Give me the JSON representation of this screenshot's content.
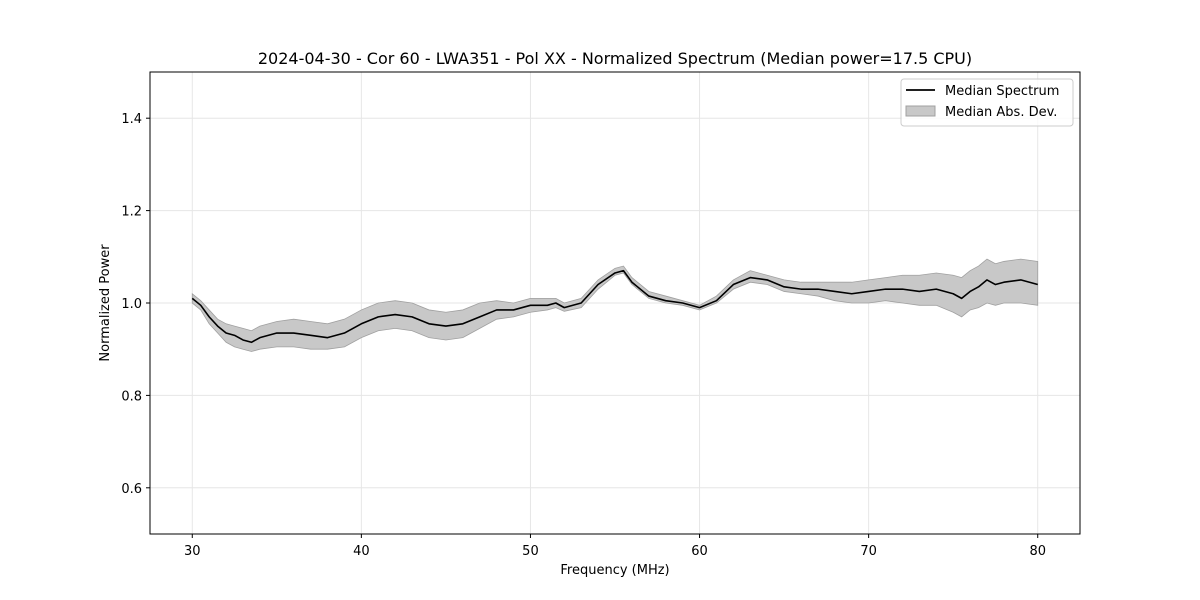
{
  "chart_data": {
    "type": "line",
    "title": "2024-04-30 - Cor 60 - LWA351 - Pol XX - Normalized Spectrum (Median power=17.5 CPU)",
    "xlabel": "Frequency (MHz)",
    "ylabel": "Normalized Power",
    "xlim": [
      27.5,
      82.5
    ],
    "ylim": [
      0.5,
      1.5
    ],
    "xticks": [
      30,
      40,
      50,
      60,
      70,
      80
    ],
    "yticks": [
      0.6,
      0.8,
      1.0,
      1.2,
      1.4
    ],
    "xtick_labels": [
      "30",
      "40",
      "50",
      "60",
      "70",
      "80"
    ],
    "ytick_labels": [
      "0.6",
      "0.8",
      "1.0",
      "1.2",
      "1.4"
    ],
    "grid": true,
    "legend_position": "top-right",
    "colors": {
      "line": "#000000",
      "band_fill": "#c8c8c8",
      "band_edge": "#a0a0a0",
      "grid": "#e6e6e6"
    },
    "series": [
      {
        "name": "Median Spectrum",
        "kind": "line",
        "x": [
          30,
          30.5,
          31,
          31.5,
          32,
          32.5,
          33,
          33.5,
          34,
          35,
          36,
          37,
          38,
          39,
          40,
          41,
          42,
          43,
          44,
          45,
          46,
          47,
          48,
          49,
          50,
          51,
          51.5,
          52,
          53,
          54,
          55,
          55.5,
          56,
          57,
          58,
          59,
          60,
          61,
          62,
          63,
          64,
          65,
          66,
          67,
          68,
          69,
          70,
          71,
          72,
          73,
          74,
          75,
          75.5,
          76,
          76.5,
          77,
          77.5,
          78,
          79,
          80
        ],
        "y": [
          1.01,
          0.995,
          0.97,
          0.95,
          0.935,
          0.93,
          0.92,
          0.915,
          0.925,
          0.935,
          0.935,
          0.93,
          0.925,
          0.935,
          0.955,
          0.97,
          0.975,
          0.97,
          0.955,
          0.95,
          0.955,
          0.97,
          0.985,
          0.985,
          0.995,
          0.995,
          1.0,
          0.99,
          1.0,
          1.04,
          1.065,
          1.07,
          1.045,
          1.015,
          1.005,
          1.0,
          0.99,
          1.005,
          1.04,
          1.055,
          1.05,
          1.035,
          1.03,
          1.03,
          1.025,
          1.02,
          1.025,
          1.03,
          1.03,
          1.025,
          1.03,
          1.02,
          1.01,
          1.025,
          1.035,
          1.05,
          1.04,
          1.045,
          1.05,
          1.04
        ]
      },
      {
        "name": "Median Abs. Dev.",
        "kind": "band",
        "x": [
          30,
          30.5,
          31,
          31.5,
          32,
          32.5,
          33,
          33.5,
          34,
          35,
          36,
          37,
          38,
          39,
          40,
          41,
          42,
          43,
          44,
          45,
          46,
          47,
          48,
          49,
          50,
          51,
          51.5,
          52,
          53,
          54,
          55,
          55.5,
          56,
          57,
          58,
          59,
          60,
          61,
          62,
          63,
          64,
          65,
          66,
          67,
          68,
          69,
          70,
          71,
          72,
          73,
          74,
          75,
          75.5,
          76,
          76.5,
          77,
          77.5,
          78,
          79,
          80
        ],
        "lower": [
          1.0,
          0.985,
          0.955,
          0.935,
          0.915,
          0.905,
          0.9,
          0.895,
          0.9,
          0.905,
          0.905,
          0.9,
          0.9,
          0.905,
          0.925,
          0.94,
          0.945,
          0.94,
          0.925,
          0.92,
          0.925,
          0.945,
          0.965,
          0.97,
          0.98,
          0.985,
          0.99,
          0.982,
          0.99,
          1.03,
          1.06,
          1.065,
          1.04,
          1.01,
          1.0,
          0.995,
          0.985,
          1.0,
          1.03,
          1.045,
          1.04,
          1.025,
          1.02,
          1.015,
          1.005,
          1.0,
          1.0,
          1.005,
          1.0,
          0.995,
          0.995,
          0.98,
          0.97,
          0.985,
          0.99,
          1.0,
          0.995,
          1.0,
          1.0,
          0.995
        ],
        "upper": [
          1.02,
          1.005,
          0.985,
          0.965,
          0.955,
          0.95,
          0.945,
          0.94,
          0.95,
          0.96,
          0.965,
          0.96,
          0.955,
          0.965,
          0.985,
          1.0,
          1.005,
          1.0,
          0.985,
          0.98,
          0.985,
          1.0,
          1.005,
          1.0,
          1.01,
          1.01,
          1.01,
          1.0,
          1.01,
          1.05,
          1.075,
          1.08,
          1.055,
          1.025,
          1.015,
          1.005,
          0.995,
          1.015,
          1.05,
          1.07,
          1.06,
          1.05,
          1.045,
          1.045,
          1.045,
          1.045,
          1.05,
          1.055,
          1.06,
          1.06,
          1.065,
          1.06,
          1.055,
          1.07,
          1.08,
          1.095,
          1.085,
          1.09,
          1.095,
          1.09
        ]
      }
    ]
  }
}
